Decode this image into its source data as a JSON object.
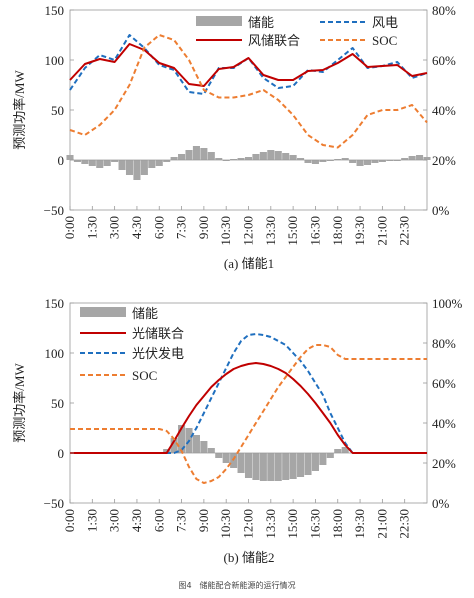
{
  "figure_caption": "图4　储能配合新能源的运行情况",
  "chart_data": [
    {
      "type": "line",
      "subcaption": "(a) 储能1",
      "ylabel": "预测功率/MW",
      "ylim": [
        -50,
        150
      ],
      "yticks": [
        "−50",
        "0",
        "50",
        "100",
        "150"
      ],
      "y2lim": [
        0,
        80
      ],
      "y2ticks": [
        "0%",
        "20%",
        "40%",
        "60%",
        "80%"
      ],
      "xticks": [
        "0:00",
        "1:30",
        "3:00",
        "4:30",
        "6:00",
        "7:30",
        "9:00",
        "10:30",
        "12:00",
        "13:30",
        "15:00",
        "16:30",
        "18:00",
        "19:30",
        "21:00",
        "22:30"
      ],
      "grid": false,
      "legend_position": "top",
      "legend": [
        {
          "label": "储能",
          "kind": "bar",
          "color": "#a6a6a6"
        },
        {
          "label": "风电",
          "kind": "dash",
          "color": "#1f6fbf"
        },
        {
          "label": "风储联合",
          "kind": "solid",
          "color": "#c00000"
        },
        {
          "label": "SOC",
          "kind": "dash",
          "color": "#ed7d31"
        }
      ],
      "series": [
        {
          "name": "风电",
          "axis": "left",
          "color": "#1f6fbf",
          "style": "dash",
          "x": [
            0,
            1,
            2,
            3,
            4,
            5,
            6,
            7,
            8,
            9,
            10,
            11,
            12,
            13,
            14,
            15,
            16,
            17,
            18,
            19,
            20,
            21,
            22,
            23,
            24
          ],
          "values": [
            70,
            92,
            105,
            100,
            125,
            112,
            95,
            90,
            68,
            66,
            92,
            92,
            102,
            82,
            72,
            74,
            90,
            88,
            100,
            112,
            92,
            94,
            98,
            82,
            87
          ]
        },
        {
          "name": "风储联合",
          "axis": "left",
          "color": "#c00000",
          "style": "solid",
          "x": [
            0,
            1,
            2,
            3,
            4,
            5,
            6,
            7,
            8,
            9,
            10,
            11,
            12,
            13,
            14,
            15,
            16,
            17,
            18,
            19,
            20,
            21,
            22,
            23,
            24
          ],
          "values": [
            80,
            96,
            101,
            98,
            116,
            110,
            97,
            92,
            76,
            74,
            91,
            93,
            102,
            85,
            80,
            80,
            89,
            90,
            97,
            106,
            93,
            94,
            95,
            84,
            87
          ]
        },
        {
          "name": "SOC",
          "axis": "right",
          "color": "#ed7d31",
          "style": "dash",
          "x": [
            0,
            1,
            2,
            3,
            4,
            5,
            6,
            7,
            8,
            9,
            10,
            11,
            12,
            13,
            14,
            15,
            16,
            17,
            18,
            19,
            20,
            21,
            22,
            23,
            24
          ],
          "values": [
            32,
            30,
            34,
            40,
            50,
            65,
            70,
            68,
            60,
            48,
            45,
            45,
            46,
            48,
            44,
            38,
            30,
            26,
            25,
            30,
            38,
            40,
            40,
            42,
            35
          ]
        }
      ],
      "bars": {
        "name": "储能",
        "color": "#a6a6a6",
        "x": [
          0,
          0.5,
          1,
          1.5,
          2,
          2.5,
          3,
          3.5,
          4,
          4.5,
          5,
          5.5,
          6,
          6.5,
          7,
          7.5,
          8,
          8.5,
          9,
          9.5,
          10,
          10.5,
          11,
          11.5,
          12,
          12.5,
          13,
          13.5,
          14,
          14.5,
          15,
          15.5,
          16,
          16.5,
          17,
          17.5,
          18,
          18.5,
          19,
          19.5,
          20,
          20.5,
          21,
          21.5,
          22,
          22.5,
          23,
          23.5,
          24
        ],
        "values": [
          5,
          -2,
          -4,
          -6,
          -8,
          -6,
          -2,
          -10,
          -15,
          -20,
          -15,
          -8,
          -6,
          -2,
          3,
          6,
          10,
          14,
          12,
          8,
          2,
          -1,
          1,
          2,
          3,
          6,
          8,
          10,
          9,
          7,
          5,
          2,
          -3,
          -4,
          -2,
          -1,
          1,
          2,
          -3,
          -6,
          -5,
          -3,
          -2,
          -1,
          -1,
          2,
          4,
          5,
          3
        ]
      }
    },
    {
      "type": "line",
      "subcaption": "(b) 储能2",
      "ylabel": "预测功率/MW",
      "ylim": [
        -50,
        150
      ],
      "yticks": [
        "−50",
        "0",
        "50",
        "100",
        "150"
      ],
      "y2lim": [
        0,
        100
      ],
      "y2ticks": [
        "0%",
        "20%",
        "40%",
        "60%",
        "80%",
        "100%"
      ],
      "xticks": [
        "0:00",
        "1:30",
        "3:00",
        "4:30",
        "6:00",
        "7:30",
        "9:00",
        "10:30",
        "12:00",
        "13:30",
        "15:00",
        "16:30",
        "18:00",
        "19:30",
        "21:00",
        "22:30"
      ],
      "grid": false,
      "legend_position": "top-left",
      "legend": [
        {
          "label": "储能",
          "kind": "bar",
          "color": "#a6a6a6"
        },
        {
          "label": "光储联合",
          "kind": "solid",
          "color": "#c00000"
        },
        {
          "label": "光伏发电",
          "kind": "dash",
          "color": "#1f6fbf"
        },
        {
          "label": "SOC",
          "kind": "dash",
          "color": "#ed7d31"
        }
      ],
      "series": [
        {
          "name": "光伏发电",
          "axis": "left",
          "color": "#1f6fbf",
          "style": "dash",
          "x": [
            0,
            1,
            2,
            3,
            4,
            5,
            6,
            6.5,
            7,
            7.5,
            8,
            8.5,
            9,
            9.5,
            10,
            10.5,
            11,
            11.5,
            12,
            12.5,
            13,
            13.5,
            14,
            14.5,
            15,
            15.5,
            16,
            16.5,
            17,
            17.5,
            18,
            18.5,
            19,
            20,
            21,
            22,
            23,
            24
          ],
          "values": [
            0,
            0,
            0,
            0,
            0,
            0,
            0,
            0,
            0,
            3,
            12,
            25,
            40,
            55,
            70,
            85,
            100,
            112,
            118,
            119,
            118,
            116,
            112,
            108,
            100,
            92,
            82,
            70,
            58,
            40,
            25,
            10,
            0,
            0,
            0,
            0,
            0,
            0
          ]
        },
        {
          "name": "光储联合",
          "axis": "left",
          "color": "#c00000",
          "style": "solid",
          "x": [
            0,
            1,
            2,
            3,
            4,
            5,
            6,
            6.5,
            7,
            7.5,
            8,
            8.5,
            9,
            9.5,
            10,
            10.5,
            11,
            11.5,
            12,
            12.5,
            13,
            13.5,
            14,
            14.5,
            15,
            15.5,
            16,
            16.5,
            17,
            17.5,
            18,
            18.5,
            19,
            20,
            21,
            22,
            23,
            24
          ],
          "values": [
            0,
            0,
            0,
            0,
            0,
            0,
            0,
            0,
            12,
            25,
            37,
            48,
            57,
            66,
            73,
            79,
            84,
            87,
            89,
            90,
            89,
            87,
            84,
            80,
            74,
            67,
            59,
            50,
            40,
            30,
            18,
            8,
            0,
            0,
            0,
            0,
            0,
            0
          ]
        },
        {
          "name": "SOC",
          "axis": "right",
          "color": "#ed7d31",
          "style": "dash",
          "x": [
            0,
            1,
            2,
            3,
            4,
            5,
            6,
            6.5,
            7,
            7.5,
            8,
            8.5,
            9,
            9.5,
            10,
            10.5,
            11,
            11.5,
            12,
            12.5,
            13,
            13.5,
            14,
            14.5,
            15,
            15.5,
            16,
            16.5,
            17,
            17.5,
            18,
            18.5,
            19,
            20,
            21,
            22,
            23,
            24
          ],
          "values": [
            37,
            37,
            37,
            37,
            37,
            37,
            37,
            36,
            32,
            26,
            18,
            12,
            10,
            11,
            13,
            17,
            22,
            28,
            34,
            40,
            46,
            52,
            58,
            63,
            68,
            73,
            77,
            79,
            79,
            78,
            74,
            72,
            72,
            72,
            72,
            72,
            72,
            72
          ]
        }
      ],
      "bars": {
        "name": "储能",
        "color": "#a6a6a6",
        "x": [
          6.5,
          7,
          7.5,
          8,
          8.5,
          9,
          9.5,
          10,
          10.5,
          11,
          11.5,
          12,
          12.5,
          13,
          13.5,
          14,
          14.5,
          15,
          15.5,
          16,
          16.5,
          17,
          17.5,
          18,
          18.5
        ],
        "values": [
          4,
          15,
          28,
          25,
          18,
          12,
          5,
          -5,
          -10,
          -15,
          -20,
          -25,
          -27,
          -28,
          -28,
          -28,
          -27,
          -26,
          -24,
          -22,
          -18,
          -12,
          -5,
          4,
          6
        ]
      }
    }
  ]
}
